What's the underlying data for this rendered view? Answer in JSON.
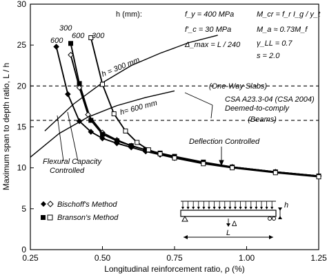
{
  "chart_data": {
    "type": "line",
    "xlabel": "Longitudinal reinforcement ratio,  ρ  (%)",
    "ylabel": "Maximum span to depth ratio,  L / h",
    "xlim": [
      0.25,
      1.25
    ],
    "ylim": [
      0,
      30
    ],
    "xticks": [
      "0.25",
      "0.50",
      "0.75",
      "1.00",
      "1.25"
    ],
    "yticks": [
      "0",
      "5",
      "10",
      "15",
      "20",
      "25",
      "30"
    ],
    "grid": false,
    "series": [
      {
        "name": "Bischoff's Method",
        "label": "600",
        "marker": "diamond-filled",
        "x": [
          0.34,
          0.38,
          0.42,
          0.46,
          0.5,
          0.55,
          0.6,
          0.65,
          0.7,
          0.75,
          0.85,
          0.95,
          1.1,
          1.25
        ],
        "y": [
          24.8,
          19.0,
          15.7,
          14.4,
          13.6,
          13.0,
          12.5,
          12.0,
          11.6,
          11.2,
          10.6,
          10.1,
          9.5,
          9.0
        ]
      },
      {
        "name": "Bischoff's Method",
        "label": "300",
        "marker": "diamond-open",
        "x": [
          0.39,
          0.42,
          0.45,
          0.5,
          0.55,
          0.6,
          0.65,
          0.7,
          0.75,
          0.85,
          0.95,
          1.1,
          1.25
        ],
        "y": [
          23.8,
          19.8,
          16.5,
          14.3,
          13.4,
          12.7,
          12.2,
          11.7,
          11.3,
          10.6,
          10.1,
          9.5,
          9.0
        ]
      },
      {
        "name": "Branson's Method",
        "label": "600",
        "marker": "square-filled",
        "x": [
          0.39,
          0.42,
          0.46,
          0.5,
          0.55,
          0.6,
          0.65,
          0.7,
          0.75,
          0.85,
          0.95,
          1.1,
          1.25
        ],
        "y": [
          25.2,
          20.3,
          15.8,
          14.1,
          13.3,
          12.7,
          12.2,
          11.8,
          11.4,
          10.7,
          10.1,
          9.5,
          9.0
        ]
      },
      {
        "name": "Branson's Method",
        "label": "300",
        "marker": "square-open",
        "x": [
          0.46,
          0.5,
          0.54,
          0.58,
          0.62,
          0.66,
          0.7,
          0.75,
          0.85,
          0.95,
          1.1,
          1.25
        ],
        "y": [
          25.9,
          20.2,
          16.6,
          14.5,
          13.1,
          12.2,
          11.7,
          11.2,
          10.5,
          10.0,
          9.4,
          8.9
        ]
      }
    ],
    "capacity_curves": [
      {
        "label": "h = 300 mm",
        "x": [
          0.3,
          0.4,
          0.5,
          0.6,
          0.7,
          0.8,
          0.9
        ],
        "y": [
          14.5,
          17.8,
          20.4,
          22.5,
          24.0,
          25.3,
          26.2
        ]
      },
      {
        "label": "h= 600 mm",
        "x": [
          0.25,
          0.35,
          0.45,
          0.55,
          0.65,
          0.75
        ],
        "y": [
          11.3,
          14.2,
          16.2,
          17.6,
          18.6,
          19.4
        ]
      }
    ],
    "reference_lines": [
      {
        "y": 20,
        "label": "(One-Way Slabs)"
      },
      {
        "y": 15.8,
        "label": "(Beams)"
      }
    ],
    "legend": {
      "title": "h (mm):",
      "entries": [
        "Bischoff's Method",
        "Branson's Method"
      ]
    },
    "parameters": {
      "fy": "f_y = 400 MPa",
      "fc": "f'_c = 30 MPa",
      "delta": "Δ_max = L / 240",
      "mcr": "M_cr = f_r I_g / y_t",
      "ma": "M_a ≈ 0.73M_f",
      "gamma": "γ_LL = 0.7",
      "s": "s = 2.0"
    },
    "annotations": {
      "csa": "CSA A23.3-04 (CSA 2004)",
      "deemed": "Deemed-to-comply",
      "flexural_line1": "Flexural Capacity",
      "flexural_line2": "Controlled",
      "deflection": "Deflection Controlled",
      "series_labels": [
        "300",
        "600",
        "600",
        "300"
      ],
      "beam_h": "h",
      "beam_delta": "Δ",
      "beam_L": "L"
    }
  }
}
